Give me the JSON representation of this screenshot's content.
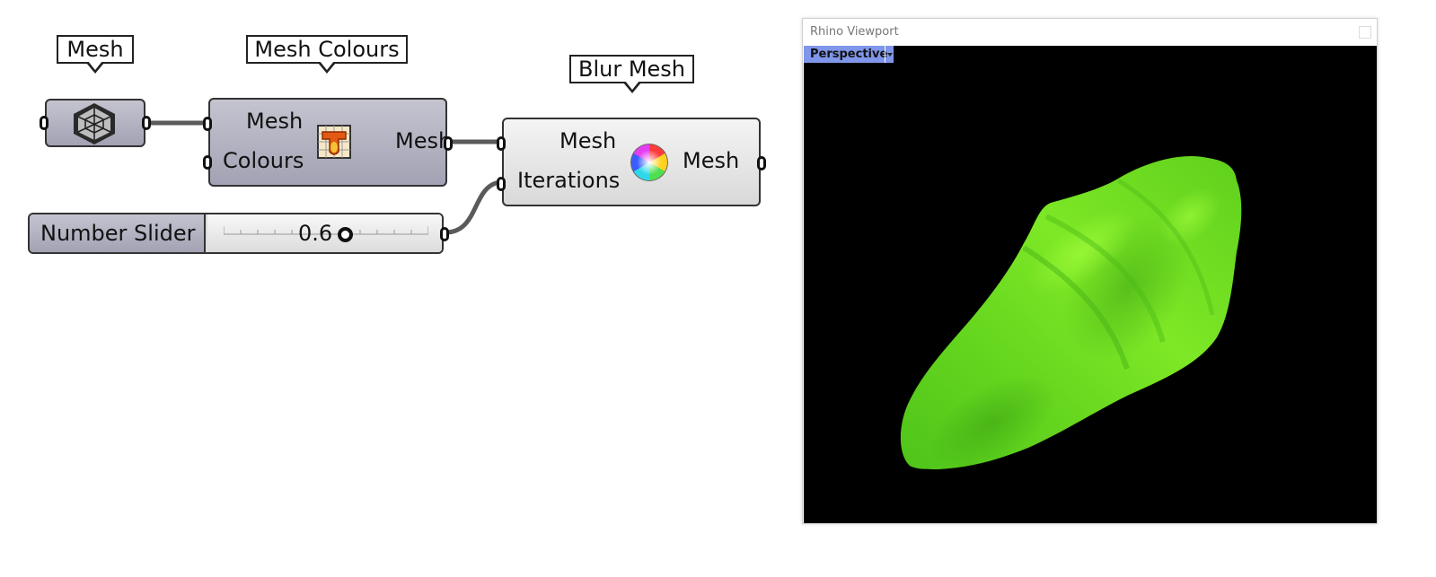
{
  "callouts": {
    "mesh": "Mesh",
    "mesh_colours": "Mesh Colours",
    "blur_mesh": "Blur Mesh"
  },
  "components": {
    "mesh_param": {
      "icon": "mesh-param-icon"
    },
    "mesh_colours": {
      "inputs": [
        "Mesh",
        "Colours"
      ],
      "output": "Mesh",
      "icon": "mesh-colours-icon"
    },
    "blur_mesh": {
      "inputs": [
        "Mesh",
        "Iterations"
      ],
      "output": "Mesh",
      "icon": "color-wheel-icon"
    },
    "number_slider": {
      "name": "Number Slider",
      "value": "0.6",
      "fraction": 0.6
    }
  },
  "viewport": {
    "window_title": "Rhino Viewport",
    "view_name": "Perspective",
    "background": "#000000",
    "mesh_color": "#6fe022"
  },
  "colors": {
    "component_dark": "#a9a9bb",
    "component_light": "#e3e3e3",
    "wire": "#5a5a5a",
    "viewport_tab": "#7f96ea"
  }
}
